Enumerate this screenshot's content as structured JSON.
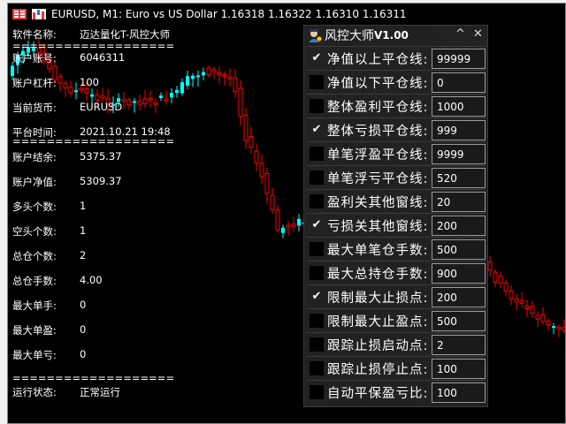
{
  "window": {
    "title": "EURUSD, M1:  Euro vs US Dollar  1.16318 1.16322 1.16310 1.16311",
    "icons": [
      "menu-grid-icon",
      "chart-window-icon"
    ]
  },
  "info": [
    {
      "label": "软件名称:",
      "value": "迈达量化T-风控大师"
    },
    {
      "label": "===================",
      "value": ""
    },
    {
      "label": "账户账号:",
      "value": "6046311"
    },
    {
      "label": "账户杠杆:",
      "value": "100"
    },
    {
      "label": "当前货币:",
      "value": "EURUSD"
    },
    {
      "label": "平台时间:",
      "value": "2021.10.21 19:48"
    },
    {
      "label": "===================",
      "value": ""
    },
    {
      "label": "账户结余:",
      "value": "5375.37"
    },
    {
      "label": "账户净值:",
      "value": "5309.37"
    },
    {
      "label": "多头个数:",
      "value": "1"
    },
    {
      "label": "空头个数:",
      "value": "1"
    },
    {
      "label": "总仓个数:",
      "value": "2"
    },
    {
      "label": "总仓手数:",
      "value": "4.00"
    },
    {
      "label": "最大单手:",
      "value": "0"
    },
    {
      "label": "最大单盈:",
      "value": "0"
    },
    {
      "label": "最大单亏:",
      "value": "0"
    },
    {
      "label": "===================",
      "value": ""
    },
    {
      "label": "运行状态:",
      "value": "正常运行"
    }
  ],
  "panel": {
    "title": "风控大师",
    "version": "V1.00",
    "minimize": "^",
    "close": "✕",
    "check_glyph": "✔",
    "rows": [
      {
        "label": "净值以上平仓线:",
        "value": "99999",
        "checked": true
      },
      {
        "label": "净值以下平仓线:",
        "value": "0",
        "checked": false
      },
      {
        "label": "整体盈利平仓线:",
        "value": "1000",
        "checked": false
      },
      {
        "label": "整体亏损平仓线:",
        "value": "999",
        "checked": true
      },
      {
        "label": "单笔浮盈平仓线:",
        "value": "9999",
        "checked": false
      },
      {
        "label": "单笔浮亏平仓线:",
        "value": "520",
        "checked": false
      },
      {
        "label": "盈利关其他窗线:",
        "value": "20",
        "checked": false
      },
      {
        "label": "亏损关其他窗线:",
        "value": "200",
        "checked": true
      },
      {
        "label": "最大单笔仓手数:",
        "value": "500",
        "checked": false
      },
      {
        "label": "最大总持仓手数:",
        "value": "900",
        "checked": false
      },
      {
        "label": "限制最大止损点:",
        "value": "200",
        "checked": true
      },
      {
        "label": "限制最大止盈点:",
        "value": "500",
        "checked": false
      },
      {
        "label": "跟踪止损启动点:",
        "value": "2",
        "checked": false
      },
      {
        "label": "跟踪止损停止点:",
        "value": "100",
        "checked": false
      },
      {
        "label": "自动平保盈亏比:",
        "value": "100",
        "checked": false
      }
    ]
  },
  "colors": {
    "bull": "#00ffff",
    "bear": "#ff0000",
    "background": "#000000"
  }
}
